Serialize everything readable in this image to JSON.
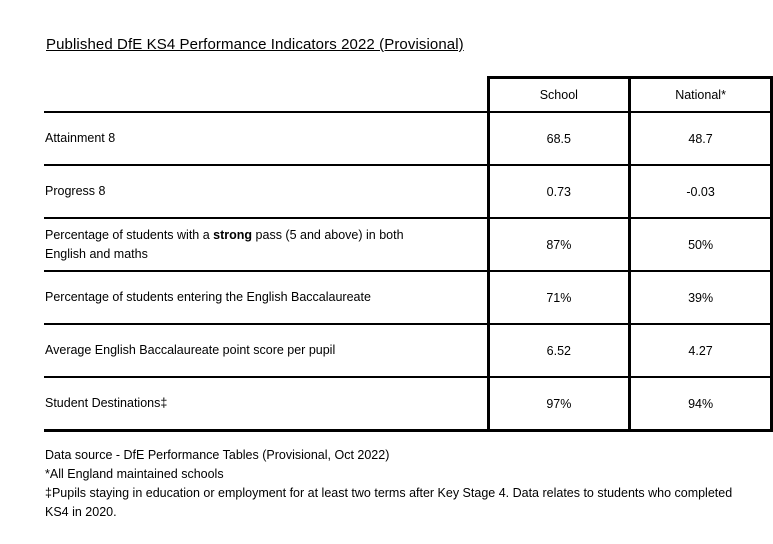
{
  "title": "Published DfE KS4 Performance Indicators 2022 (Provisional)",
  "columns": {
    "school": "School",
    "national": "National*"
  },
  "rows": [
    {
      "label": "Attainment 8",
      "school": "68.5",
      "national": "48.7"
    },
    {
      "label": "Progress 8",
      "school": "0.73",
      "national": "-0.03"
    },
    {
      "label_pre": "Percentage of students with a ",
      "label_strong": "strong",
      "label_post": " pass (5 and above) in both English and maths",
      "school": "87%",
      "national": "50%"
    },
    {
      "label": "Percentage of students entering the English Baccalaureate",
      "school": "71%",
      "national": "39%"
    },
    {
      "label": "Average English Baccalaureate point score per pupil",
      "school": "6.52",
      "national": "4.27"
    },
    {
      "label": "Student Destinations‡",
      "school": "97%",
      "national": "94%"
    }
  ],
  "notes": [
    "Data source - DfE Performance Tables (Provisional, Oct 2022)",
    "*All England maintained schools",
    "‡Pupils staying in education or employment for at least two terms after Key Stage 4. Data relates to students who completed KS4 in 2020."
  ]
}
